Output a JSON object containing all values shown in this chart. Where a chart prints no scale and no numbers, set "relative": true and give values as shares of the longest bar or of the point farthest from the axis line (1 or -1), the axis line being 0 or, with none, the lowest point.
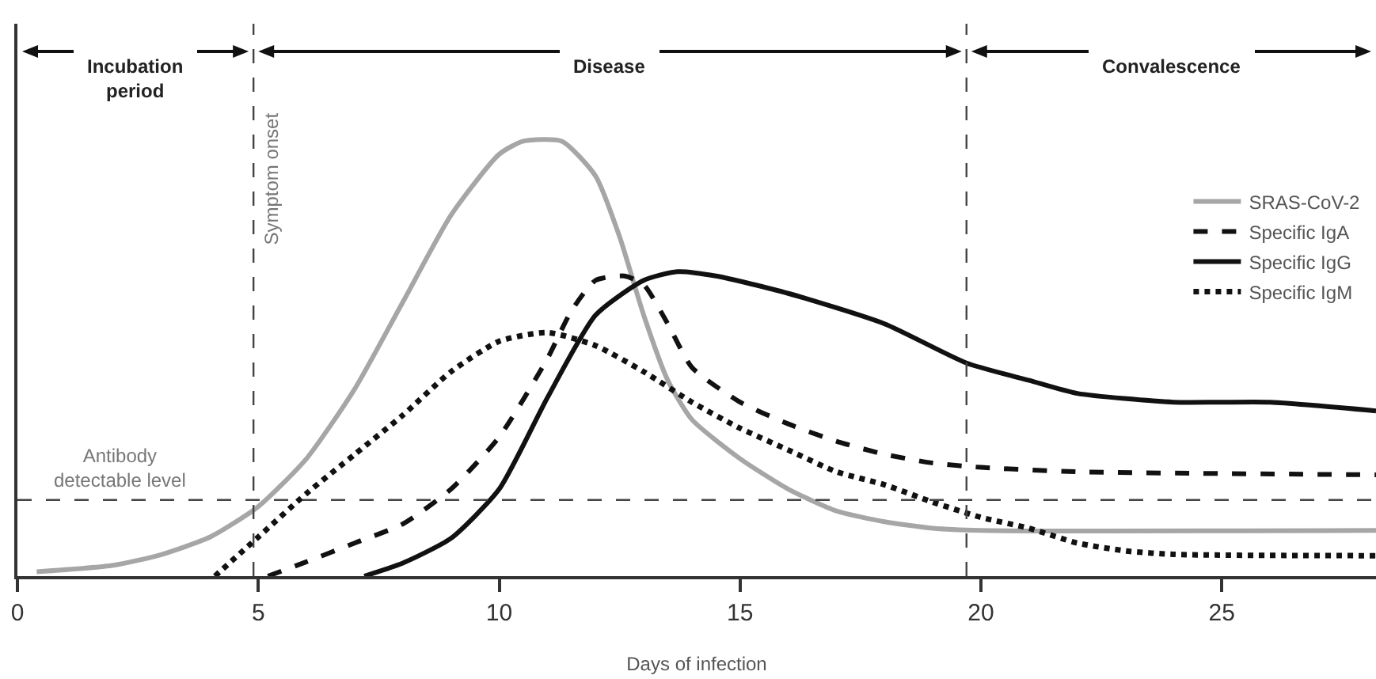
{
  "chart_data": {
    "type": "line",
    "relative": true,
    "xlabel": "Days of infection",
    "xlim": [
      0,
      28.2
    ],
    "xticks": [
      0,
      5,
      10,
      15,
      20,
      25
    ],
    "grid": false,
    "legend": "right",
    "marker": "none",
    "series": [
      {
        "name": "SRAS-CoV-2",
        "color": "#a6a6a6",
        "line_style": "solid",
        "x": [
          0.4,
          2,
          3,
          4,
          5,
          6,
          7,
          8,
          9,
          10,
          10.5,
          11.3,
          12,
          12.5,
          13,
          13.5,
          14,
          15,
          16,
          17,
          18,
          19,
          20,
          28.2
        ],
        "values": [
          0.01,
          0.025,
          0.05,
          0.09,
          0.16,
          0.27,
          0.43,
          0.63,
          0.83,
          0.97,
          1,
          1,
          0.92,
          0.78,
          0.6,
          0.45,
          0.36,
          0.27,
          0.2,
          0.15,
          0.125,
          0.11,
          0.105,
          0.105
        ]
      },
      {
        "name": "Specific IgA",
        "color": "#111111",
        "line_style": "dashed",
        "x": [
          5.2,
          6,
          7,
          8,
          9,
          10,
          11,
          11.5,
          12,
          12.6,
          13,
          13.5,
          14,
          15,
          16,
          17,
          18,
          19,
          20,
          22,
          28.2
        ],
        "values": [
          0,
          0.033,
          0.076,
          0.12,
          0.2,
          0.32,
          0.5,
          0.61,
          0.68,
          0.69,
          0.67,
          0.58,
          0.48,
          0.4,
          0.35,
          0.31,
          0.28,
          0.26,
          0.25,
          0.24,
          0.233
        ]
      },
      {
        "name": "Specific IgG",
        "color": "#111111",
        "line_style": "solid",
        "x": [
          7.2,
          8,
          9,
          10,
          11,
          12,
          13,
          13.7,
          14.5,
          16,
          18,
          19.7,
          21,
          22,
          24,
          26,
          28.2
        ],
        "values": [
          0,
          0.03,
          0.087,
          0.2,
          0.41,
          0.6,
          0.68,
          0.7,
          0.69,
          0.65,
          0.58,
          0.49,
          0.45,
          0.42,
          0.4,
          0.4,
          0.38
        ]
      },
      {
        "name": "Specific IgM",
        "color": "#111111",
        "line_style": "dotted",
        "x": [
          4.1,
          5,
          6,
          7,
          8,
          9,
          10,
          11,
          12,
          13,
          14,
          15,
          16,
          17,
          18,
          19,
          20,
          21,
          22,
          23,
          24,
          28.2
        ],
        "values": [
          0,
          0.09,
          0.19,
          0.28,
          0.37,
          0.47,
          0.54,
          0.56,
          0.53,
          0.47,
          0.4,
          0.34,
          0.29,
          0.24,
          0.21,
          0.17,
          0.135,
          0.11,
          0.076,
          0.058,
          0.05,
          0.047
        ]
      }
    ],
    "ref_lines": [
      {
        "axis": "x",
        "value": 4.9,
        "label": "Symptom onset",
        "line_style": "dashed",
        "color": "#444444"
      },
      {
        "axis": "x",
        "value": 19.7,
        "line_style": "dashed",
        "color": "#444444"
      },
      {
        "axis": "y",
        "value": 0.175,
        "label": "Antibody detectable level",
        "line_style": "dashed",
        "color": "#444444"
      }
    ],
    "annotations": [
      "Incubation period",
      "Disease",
      "Convalescence"
    ]
  }
}
